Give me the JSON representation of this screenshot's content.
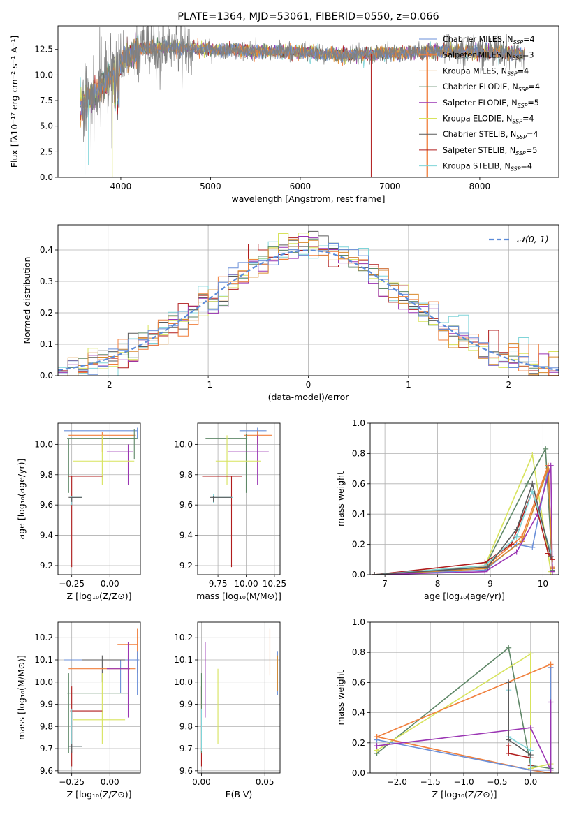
{
  "colors": [
    "#6a8fd8",
    "#f07f3c",
    "#d98a2b",
    "#5e8767",
    "#9a35b3",
    "#d7e35c",
    "#5a5a5a",
    "#b01c1c",
    "#7fd4d8"
  ],
  "chart_data": [
    {
      "id": "spectrum",
      "type": "line",
      "title": "PLATE=1364, MJD=53061, FIBERID=0550, z=0.066",
      "xlabel": "wavelength [Angstrom, rest frame]",
      "ylabel": "Flux [fλ10⁻¹⁷ erg cm⁻² s⁻¹ A⁻¹]",
      "xlim": [
        3300,
        8880
      ],
      "ylim": [
        0,
        14.8
      ],
      "xticks": [
        4000,
        5000,
        6000,
        7000,
        8000
      ],
      "yticks": [
        0.0,
        2.5,
        5.0,
        7.5,
        10.0,
        12.5
      ],
      "continuum": [
        [
          3550,
          7.0
        ],
        [
          3700,
          8.0
        ],
        [
          3850,
          9.5
        ],
        [
          3950,
          10.2
        ],
        [
          4050,
          11.5
        ],
        [
          4200,
          12.5
        ],
        [
          4500,
          12.7
        ],
        [
          5000,
          12.5
        ],
        [
          5500,
          12.3
        ],
        [
          6000,
          12.2
        ],
        [
          6500,
          12.0
        ],
        [
          7000,
          12.1
        ],
        [
          7500,
          12.3
        ],
        [
          8000,
          12.3
        ],
        [
          8300,
          12.2
        ],
        [
          8500,
          12.0
        ]
      ],
      "legend": [
        {
          "label": "Chabrier MILES, N",
          "sub": "SSP",
          "value": "=4"
        },
        {
          "label": "Salpeter MILES, N",
          "sub": "SSP",
          "value": "=3"
        },
        {
          "label": "Kroupa MILES, N",
          "sub": "SSP",
          "value": "=4"
        },
        {
          "label": "Chabrier ELODIE, N",
          "sub": "SSP",
          "value": "=4"
        },
        {
          "label": "Salpeter ELODIE, N",
          "sub": "SSP",
          "value": "=5"
        },
        {
          "label": "Kroupa ELODIE, N",
          "sub": "SSP",
          "value": "=4"
        },
        {
          "label": "Chabrier STELIB, N",
          "sub": "SSP",
          "value": "=4"
        },
        {
          "label": "Salpeter STELIB, N",
          "sub": "SSP",
          "value": "=5"
        },
        {
          "label": "Kroupa STELIB, N",
          "sub": "SSP",
          "value": "=4"
        }
      ]
    },
    {
      "id": "residuals",
      "type": "histogram",
      "xlabel": "(data-model)/error",
      "ylabel": "Normed distribution",
      "xlim": [
        -2.5,
        2.5
      ],
      "ylim": [
        0,
        0.48
      ],
      "xticks": [
        -2,
        -1,
        0,
        1,
        2
      ],
      "yticks": [
        0.0,
        0.1,
        0.2,
        0.3,
        0.4
      ],
      "legend_label": "𝒩(0, 1)",
      "gaussian": {
        "mu": 0,
        "sigma": 1
      }
    },
    {
      "id": "age-vs-Z",
      "type": "errorbar",
      "xlabel": "Z [log₁₀(Z/Z⊙)]",
      "ylabel": "age  [log₁₀(age/yr)]",
      "xlim": [
        -0.34,
        0.2
      ],
      "ylim": [
        9.14,
        10.14
      ],
      "xticks": [
        -0.25,
        0.0
      ],
      "xticklabels": [
        "−0.25",
        "0.00"
      ],
      "yticks": [
        9.2,
        9.4,
        9.6,
        9.8,
        10.0
      ],
      "points": [
        {
          "x": 0.18,
          "xlo": -0.3,
          "xhi": 0.18,
          "y": 10.09,
          "ylo": 10.04,
          "yhi": 10.11,
          "c": 0
        },
        {
          "x": -0.05,
          "xlo": -0.27,
          "xhi": 0.17,
          "y": 10.06,
          "ylo": 9.95,
          "yhi": 10.08,
          "c": 1
        },
        {
          "x": 0.16,
          "xlo": -0.05,
          "xhi": 0.17,
          "y": 10.04,
          "ylo": 9.9,
          "yhi": 10.1,
          "c": 3
        },
        {
          "x": -0.27,
          "xlo": -0.28,
          "xhi": 0.18,
          "y": 10.04,
          "ylo": 9.68,
          "yhi": 10.04,
          "c": 3
        },
        {
          "x": 0.12,
          "xlo": -0.02,
          "xhi": 0.15,
          "y": 9.95,
          "ylo": 9.73,
          "yhi": 10.0,
          "c": 4
        },
        {
          "x": -0.05,
          "xlo": -0.24,
          "xhi": 0.16,
          "y": 9.89,
          "ylo": 9.73,
          "yhi": 10.06,
          "c": 5
        },
        {
          "x": -0.25,
          "xlo": -0.27,
          "xhi": -0.05,
          "y": 9.79,
          "ylo": 9.19,
          "yhi": 9.79,
          "c": 7
        },
        {
          "x": -0.25,
          "xlo": -0.26,
          "xhi": -0.18,
          "y": 9.65,
          "ylo": 9.6,
          "yhi": 9.66,
          "c": 8
        },
        {
          "x": -0.25,
          "xlo": -0.27,
          "xhi": -0.18,
          "y": 9.65,
          "ylo": 9.62,
          "yhi": 9.65,
          "c": 6
        }
      ]
    },
    {
      "id": "age-vs-mass",
      "type": "errorbar",
      "xlabel": "mass [log₁₀(M/M⊙)]",
      "ylabel": "",
      "xlim": [
        9.57,
        10.3
      ],
      "ylim": [
        9.14,
        10.14
      ],
      "xticks": [
        9.75,
        10.0,
        10.25
      ],
      "xticklabels": [
        "9.75",
        "10.00",
        "10.25"
      ],
      "yticks": [
        9.2,
        9.4,
        9.6,
        9.8,
        10.0
      ],
      "points": [
        {
          "x": 10.1,
          "xlo": 9.94,
          "xhi": 10.18,
          "y": 10.09,
          "ylo": 10.03,
          "yhi": 10.11,
          "c": 0
        },
        {
          "x": 10.1,
          "xlo": 9.98,
          "xhi": 10.23,
          "y": 10.06,
          "ylo": 10.0,
          "yhi": 10.09,
          "c": 1
        },
        {
          "x": 10.0,
          "xlo": 9.64,
          "xhi": 10.01,
          "y": 10.04,
          "ylo": 9.68,
          "yhi": 10.07,
          "c": 3
        },
        {
          "x": 10.1,
          "xlo": 9.84,
          "xhi": 10.2,
          "y": 9.95,
          "ylo": 9.73,
          "yhi": 10.06,
          "c": 4
        },
        {
          "x": 9.83,
          "xlo": 9.73,
          "xhi": 10.13,
          "y": 9.89,
          "ylo": 9.73,
          "yhi": 10.06,
          "c": 5
        },
        {
          "x": 9.87,
          "xlo": 9.61,
          "xhi": 9.96,
          "y": 9.79,
          "ylo": 9.19,
          "yhi": 9.79,
          "c": 7
        },
        {
          "x": 9.71,
          "xlo": 9.69,
          "xhi": 9.88,
          "y": 9.65,
          "ylo": 9.61,
          "yhi": 9.67,
          "c": 8
        },
        {
          "x": 9.71,
          "xlo": 9.68,
          "xhi": 9.87,
          "y": 9.65,
          "ylo": 9.62,
          "yhi": 9.66,
          "c": 6
        }
      ]
    },
    {
      "id": "weight-vs-age",
      "type": "line",
      "xlabel": "age  [log₁₀(age/yr)]",
      "ylabel": "mass weight",
      "xlim": [
        6.72,
        10.3
      ],
      "ylim": [
        0.0,
        1.0
      ],
      "xticks": [
        7,
        8,
        9,
        10
      ],
      "yticks": [
        0.0,
        0.2,
        0.4,
        0.6,
        0.8,
        1.0
      ],
      "series": [
        {
          "c": 5,
          "pts": [
            [
              6.8,
              0.0
            ],
            [
              8.9,
              0.06
            ],
            [
              9.8,
              0.79
            ],
            [
              10.15,
              0.02
            ]
          ]
        },
        {
          "c": 3,
          "pts": [
            [
              6.8,
              0.0
            ],
            [
              8.9,
              0.05
            ],
            [
              9.7,
              0.6
            ],
            [
              10.05,
              0.83
            ],
            [
              10.18,
              0.03
            ]
          ]
        },
        {
          "c": 0,
          "pts": [
            [
              6.8,
              0.0
            ],
            [
              8.9,
              0.03
            ],
            [
              9.5,
              0.2
            ],
            [
              9.8,
              0.18
            ],
            [
              10.1,
              0.7
            ],
            [
              10.18,
              0.05
            ]
          ]
        },
        {
          "c": 1,
          "pts": [
            [
              6.8,
              0.0
            ],
            [
              8.9,
              0.05
            ],
            [
              9.6,
              0.25
            ],
            [
              10.1,
              0.72
            ],
            [
              10.18,
              0.05
            ]
          ]
        },
        {
          "c": 2,
          "pts": [
            [
              6.8,
              0.0
            ],
            [
              8.9,
              0.04
            ],
            [
              9.6,
              0.22
            ],
            [
              10.1,
              0.7
            ],
            [
              10.18,
              0.04
            ]
          ]
        },
        {
          "c": 4,
          "pts": [
            [
              6.8,
              0.0
            ],
            [
              8.9,
              0.02
            ],
            [
              9.5,
              0.15
            ],
            [
              9.9,
              0.4
            ],
            [
              10.15,
              0.72
            ],
            [
              10.18,
              0.02
            ]
          ]
        },
        {
          "c": 7,
          "pts": [
            [
              6.8,
              0.0
            ],
            [
              8.9,
              0.08
            ],
            [
              9.4,
              0.2
            ],
            [
              9.8,
              0.55
            ],
            [
              10.1,
              0.14
            ],
            [
              10.18,
              0.1
            ]
          ]
        },
        {
          "c": 8,
          "pts": [
            [
              6.8,
              0.0
            ],
            [
              8.9,
              0.06
            ],
            [
              9.5,
              0.25
            ],
            [
              9.8,
              0.55
            ],
            [
              10.15,
              0.15
            ]
          ]
        },
        {
          "c": 6,
          "pts": [
            [
              6.8,
              0.0
            ],
            [
              8.95,
              0.05
            ],
            [
              9.5,
              0.3
            ],
            [
              9.8,
              0.6
            ],
            [
              10.15,
              0.12
            ]
          ]
        }
      ]
    },
    {
      "id": "mass-vs-Z",
      "type": "errorbar",
      "xlabel": "Z [log₁₀(Z/Z⊙)]",
      "ylabel": "mass [log₁₀(M/M⊙)]",
      "xlim": [
        -0.34,
        0.2
      ],
      "ylim": [
        9.59,
        10.27
      ],
      "xticks": [
        -0.25,
        0.0
      ],
      "xticklabels": [
        "−0.25",
        "0.00"
      ],
      "yticks": [
        9.6,
        9.7,
        9.8,
        9.9,
        10.0,
        10.1,
        10.2
      ],
      "points": [
        {
          "x": 0.07,
          "xlo": -0.3,
          "xhi": 0.18,
          "y": 10.1,
          "ylo": 9.95,
          "yhi": 10.1,
          "c": 0
        },
        {
          "x": -0.05,
          "xlo": -0.18,
          "xhi": 0.1,
          "y": 10.1,
          "ylo": 10.0,
          "yhi": 10.12,
          "c": 6
        },
        {
          "x": 0.18,
          "xlo": 0.05,
          "xhi": 0.18,
          "y": 10.17,
          "ylo": 10.04,
          "yhi": 10.24,
          "c": 1
        },
        {
          "x": 0.12,
          "xlo": -0.27,
          "xhi": 0.17,
          "y": 10.06,
          "ylo": 10.0,
          "yhi": 10.12,
          "c": 1
        },
        {
          "x": 0.12,
          "xlo": -0.02,
          "xhi": 0.13,
          "y": 10.06,
          "ylo": 9.84,
          "yhi": 10.18,
          "c": 4
        },
        {
          "x": 0.18,
          "xlo": 0.17,
          "xhi": 0.19,
          "y": 10.1,
          "ylo": 9.94,
          "yhi": 10.14,
          "c": 0
        },
        {
          "x": -0.27,
          "xlo": -0.28,
          "xhi": 0.12,
          "y": 9.95,
          "ylo": 9.68,
          "yhi": 10.04,
          "c": 3
        },
        {
          "x": -0.05,
          "xlo": -0.24,
          "xhi": 0.1,
          "y": 9.83,
          "ylo": 9.72,
          "yhi": 10.04,
          "c": 5
        },
        {
          "x": -0.25,
          "xlo": -0.26,
          "xhi": -0.05,
          "y": 9.87,
          "ylo": 9.62,
          "yhi": 9.98,
          "c": 7
        },
        {
          "x": -0.25,
          "xlo": -0.27,
          "xhi": -0.18,
          "y": 9.71,
          "ylo": 9.69,
          "yhi": 9.88,
          "c": 8
        },
        {
          "x": -0.25,
          "xlo": -0.27,
          "xhi": -0.18,
          "y": 9.71,
          "ylo": 9.68,
          "yhi": 9.72,
          "c": 6
        }
      ]
    },
    {
      "id": "mass-vs-ebv",
      "type": "errorbar",
      "xlabel": "E(B-V)",
      "ylabel": "",
      "xlim": [
        -0.003,
        0.062
      ],
      "ylim": [
        9.59,
        10.27
      ],
      "xticks": [
        0.0,
        0.05
      ],
      "xticklabels": [
        "0.00",
        "0.05"
      ],
      "yticks": [
        9.6,
        9.7,
        9.8,
        9.9,
        10.0,
        10.1,
        10.2
      ],
      "vbars": [
        {
          "x": 0.0,
          "ylo": 9.62,
          "yhi": 9.98,
          "c": 7
        },
        {
          "x": 0.0,
          "ylo": 9.68,
          "yhi": 10.04,
          "c": 3
        },
        {
          "x": 0.0,
          "ylo": 9.69,
          "yhi": 9.88,
          "c": 8
        },
        {
          "x": 0.003,
          "ylo": 9.84,
          "yhi": 10.18,
          "c": 4
        },
        {
          "x": 0.013,
          "ylo": 9.72,
          "yhi": 10.06,
          "c": 5
        },
        {
          "x": 0.054,
          "ylo": 10.03,
          "yhi": 10.24,
          "c": 1
        },
        {
          "x": 0.06,
          "ylo": 9.94,
          "yhi": 10.14,
          "c": 0
        },
        {
          "x": 0.06,
          "ylo": 9.96,
          "yhi": 10.12,
          "c": 2
        }
      ]
    },
    {
      "id": "weight-vs-Z",
      "type": "line",
      "xlabel": "Z [log₁₀(Z/Z⊙)]",
      "ylabel": "mass weight",
      "xlim": [
        -2.4,
        0.42
      ],
      "ylim": [
        0.0,
        1.0
      ],
      "xticks": [
        -2.0,
        -1.5,
        -1.0,
        -0.5,
        0.0
      ],
      "xticklabels": [
        "−2.0",
        "−1.5",
        "−1.0",
        "−0.5",
        "0.0"
      ],
      "yticks": [
        0.0,
        0.2,
        0.4,
        0.6,
        0.8,
        1.0
      ],
      "series": [
        {
          "c": 3,
          "pts": [
            [
              -2.3,
              0.13
            ],
            [
              -0.33,
              0.83
            ],
            [
              0.0,
              0.05
            ],
            [
              0.3,
              0.03
            ]
          ]
        },
        {
          "c": 5,
          "pts": [
            [
              -2.3,
              0.15
            ],
            [
              0.0,
              0.79
            ],
            [
              0.0,
              0.03
            ],
            [
              0.3,
              0.06
            ]
          ]
        },
        {
          "c": 1,
          "pts": [
            [
              -2.3,
              0.24
            ],
            [
              0.0,
              0.02
            ],
            [
              0.3,
              0.0
            ],
            [
              0.3,
              0.72
            ]
          ]
        },
        {
          "c": 0,
          "pts": [
            [
              -2.3,
              0.22
            ],
            [
              0.0,
              0.02
            ],
            [
              0.3,
              0.02
            ],
            [
              0.3,
              0.7
            ]
          ]
        },
        {
          "c": 4,
          "pts": [
            [
              -2.3,
              0.18
            ],
            [
              0.0,
              0.3
            ],
            [
              0.3,
              0.02
            ],
            [
              0.3,
              0.47
            ]
          ]
        },
        {
          "c": 1,
          "pts": [
            [
              -2.3,
              0.24
            ],
            [
              0.3,
              0.72
            ]
          ]
        },
        {
          "c": 7,
          "pts": [
            [
              -0.33,
              0.18
            ],
            [
              -0.33,
              0.13
            ],
            [
              0.0,
              0.1
            ],
            [
              0.0,
              0.05
            ]
          ]
        },
        {
          "c": 8,
          "pts": [
            [
              -0.33,
              0.55
            ],
            [
              -0.33,
              0.24
            ],
            [
              0.0,
              0.15
            ],
            [
              0.0,
              0.04
            ]
          ]
        },
        {
          "c": 6,
          "pts": [
            [
              -0.33,
              0.6
            ],
            [
              -0.33,
              0.22
            ],
            [
              0.0,
              0.12
            ]
          ]
        }
      ]
    }
  ]
}
